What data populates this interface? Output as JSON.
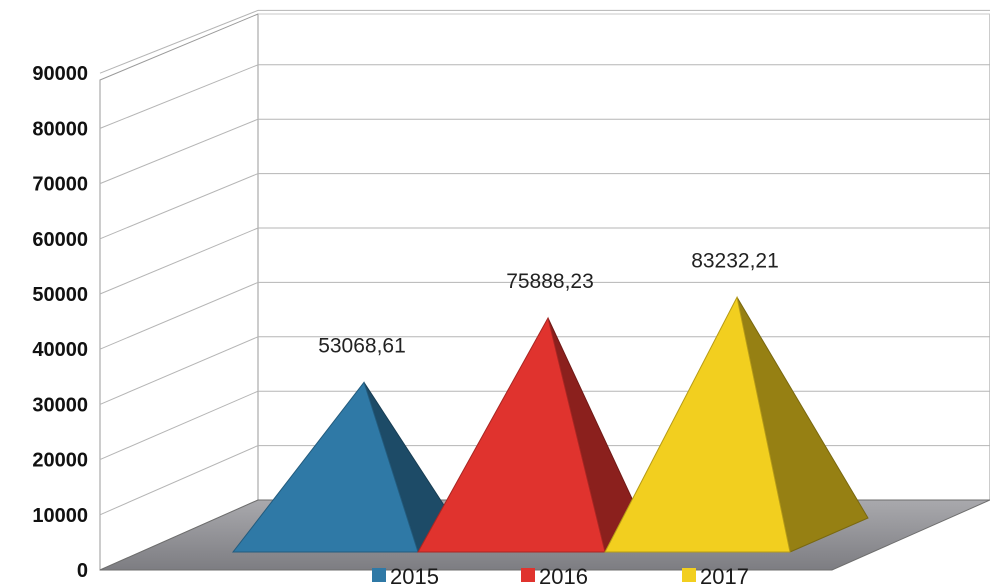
{
  "chart_data": {
    "type": "bar",
    "shape": "3d-pyramid",
    "categories": [
      "2015",
      "2016",
      "2017"
    ],
    "values": [
      53068.61,
      75888.23,
      83232.21
    ],
    "data_labels": [
      "53068,61",
      "75888,23",
      "83232,21"
    ],
    "colors": [
      "#2f79a6",
      "#e0332e",
      "#f2cf1f"
    ],
    "title": "",
    "xlabel": "",
    "ylabel": "",
    "ylim": [
      0,
      90000
    ],
    "yticks": [
      "0",
      "10000",
      "20000",
      "30000",
      "40000",
      "50000",
      "60000",
      "70000",
      "80000",
      "90000"
    ],
    "grid": true,
    "legend": {
      "position": "bottom",
      "entries": [
        "2015",
        "2016",
        "2017"
      ]
    }
  }
}
